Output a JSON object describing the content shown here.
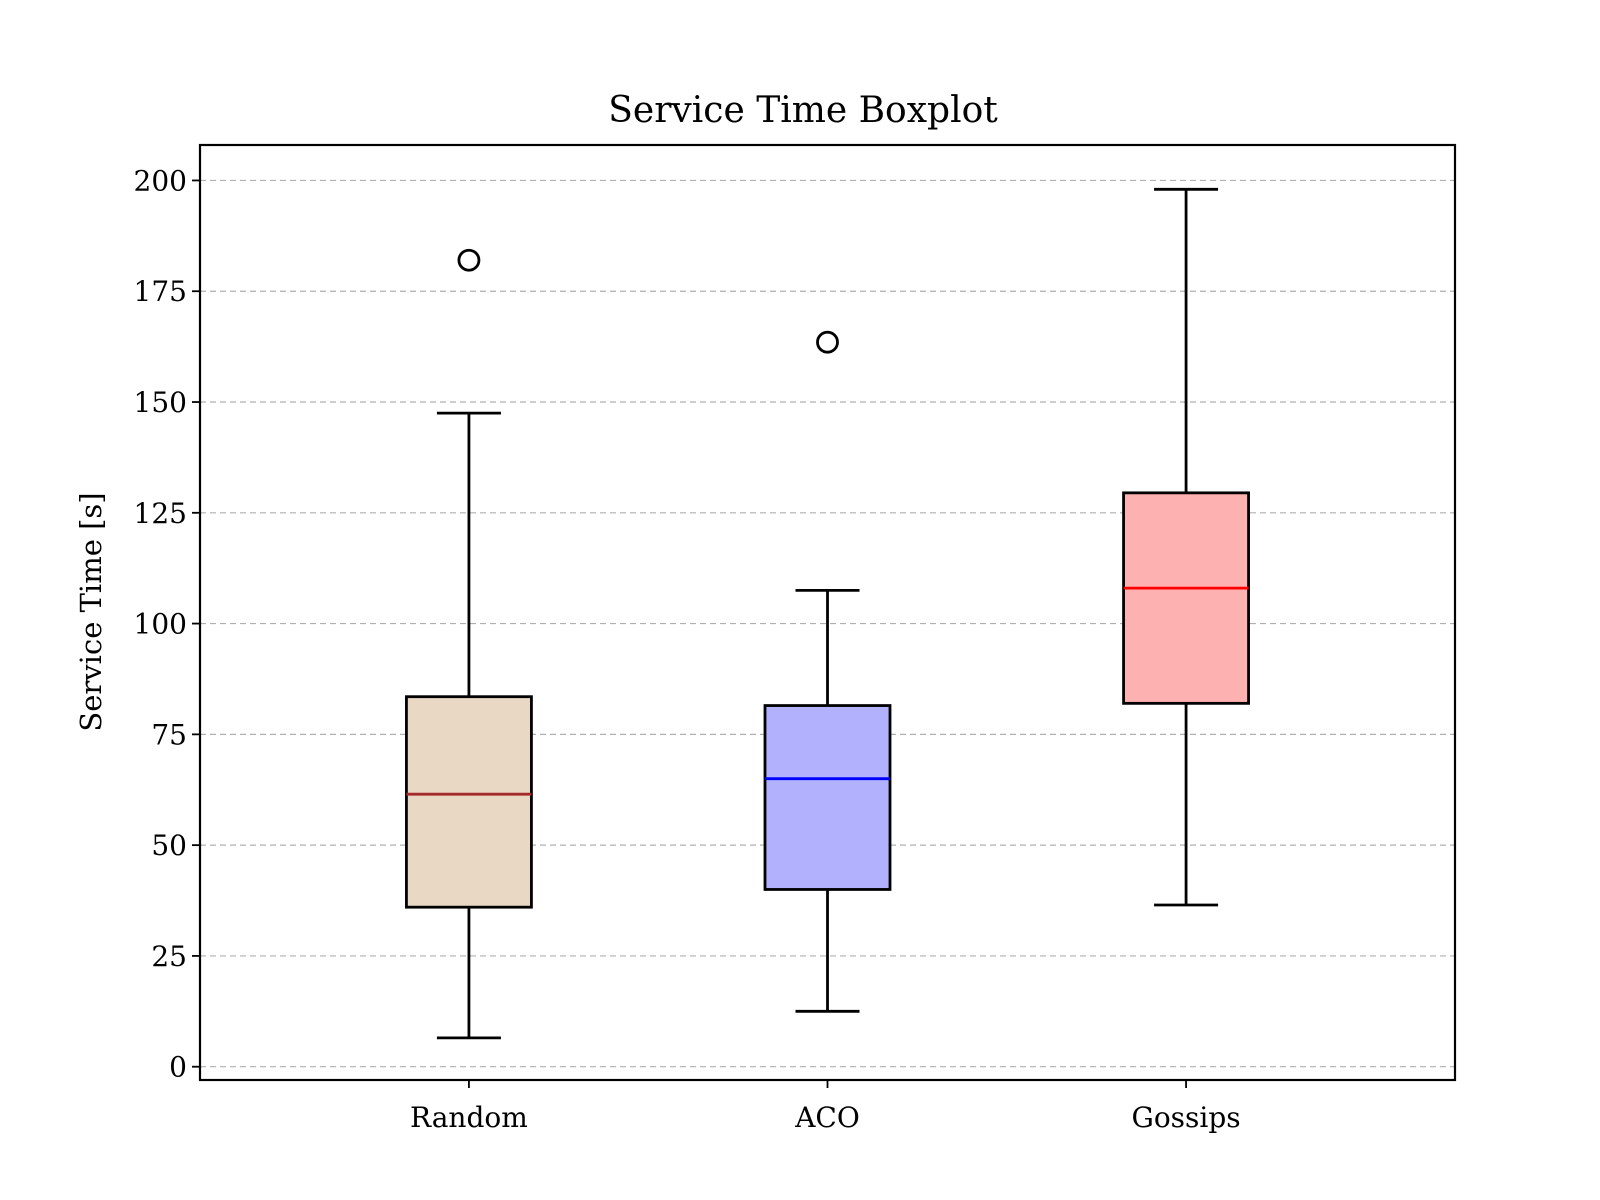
{
  "chart_data": {
    "type": "box",
    "title": "Service Time Boxplot",
    "xlabel": "",
    "ylabel": "Service Time [s]",
    "ylim": [
      -3,
      208
    ],
    "yticks": [
      0,
      25,
      50,
      75,
      100,
      125,
      150,
      175,
      200
    ],
    "grid": "horizontal dashed",
    "categories": [
      "Random",
      "ACO",
      "Gossips"
    ],
    "boxes": [
      {
        "category": "Random",
        "whisker_low": 6.5,
        "q1": 36,
        "median": 61.5,
        "q3": 83.5,
        "whisker_high": 147.5,
        "outliers": [
          182
        ],
        "fill_color": "#e9d9c4",
        "median_color": "#a52a2a"
      },
      {
        "category": "ACO",
        "whisker_low": 12.5,
        "q1": 40,
        "median": 65,
        "q3": 81.5,
        "whisker_high": 107.5,
        "outliers": [
          163.5
        ],
        "fill_color": "#b1b1fd",
        "median_color": "#0000ff"
      },
      {
        "category": "Gossips",
        "whisker_low": 36.5,
        "q1": 82,
        "median": 108,
        "q3": 129.5,
        "whisker_high": 198,
        "outliers": [],
        "fill_color": "#feb1b1",
        "median_color": "#ff0000"
      }
    ]
  }
}
